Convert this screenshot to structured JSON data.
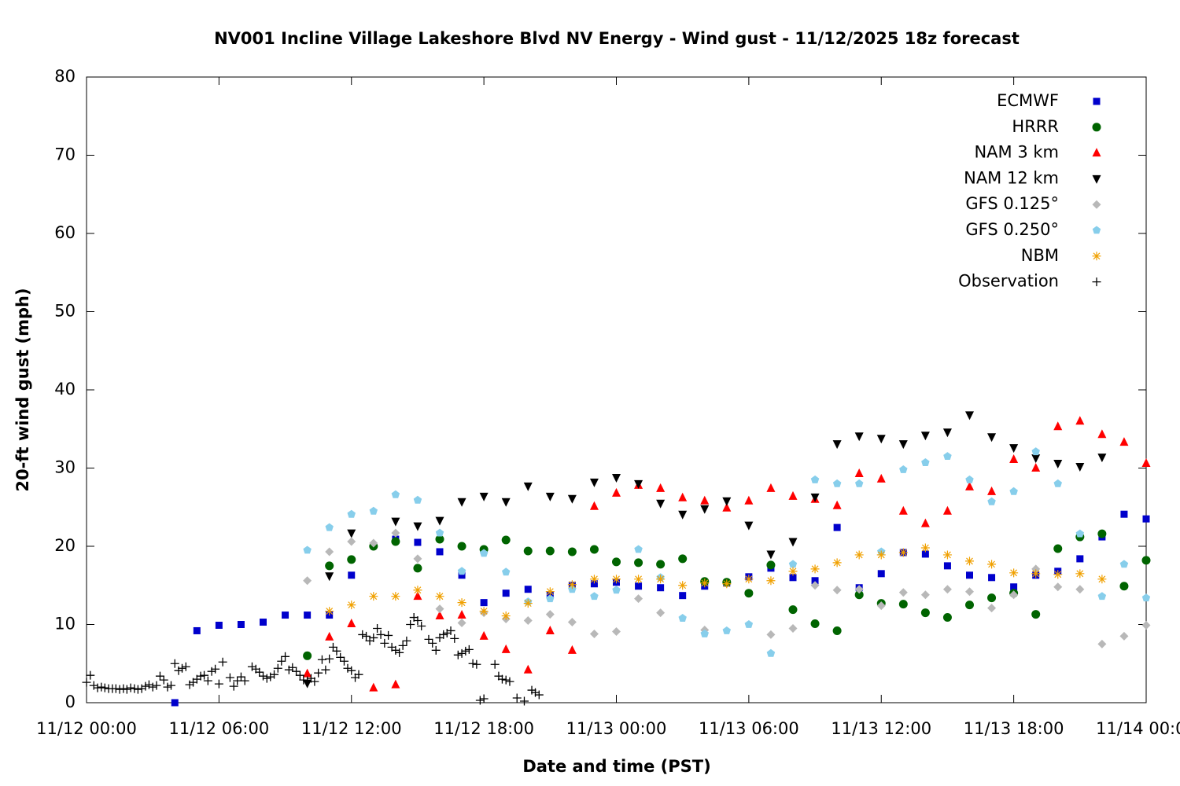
{
  "chart_data": {
    "type": "scatter",
    "title": "NV001 Incline Village Lakeshore Blvd NV Energy - Wind gust - 11/12/2025 18z forecast",
    "x_label": "Date and time (PST)",
    "y_label": "20-ft wind gust (mph)",
    "xlim": [
      0,
      48
    ],
    "ylim": [
      0,
      80
    ],
    "xticks": [
      {
        "value": 0,
        "label": "11/12 00:00"
      },
      {
        "value": 6,
        "label": "11/12 06:00"
      },
      {
        "value": 12,
        "label": "11/12 12:00"
      },
      {
        "value": 18,
        "label": "11/12 18:00"
      },
      {
        "value": 24,
        "label": "11/13 00:00"
      },
      {
        "value": 30,
        "label": "11/13 06:00"
      },
      {
        "value": 36,
        "label": "11/13 12:00"
      },
      {
        "value": 42,
        "label": "11/13 18:00"
      },
      {
        "value": 48,
        "label": "11/14 00:00"
      }
    ],
    "yticks": [
      0,
      10,
      20,
      30,
      40,
      50,
      60,
      70,
      80
    ],
    "grid": false,
    "legend": "top-right",
    "x": [
      0,
      1,
      2,
      3,
      4,
      5,
      6,
      7,
      8,
      9,
      10,
      11,
      12,
      13,
      14,
      15,
      16,
      17,
      18,
      19,
      20,
      21,
      22,
      23,
      24,
      25,
      26,
      27,
      28,
      29,
      30,
      31,
      32,
      33,
      34,
      35,
      36,
      37,
      38,
      39,
      40,
      41,
      42,
      43,
      44,
      45,
      46,
      47,
      48
    ],
    "series": [
      {
        "name": "ECMWF",
        "color": "#0000cc",
        "marker": "square",
        "values": [
          null,
          null,
          null,
          null,
          0,
          9.2,
          9.9,
          10.0,
          10.3,
          11.2,
          11.2,
          11.2,
          16.3,
          null,
          20.9,
          20.5,
          19.3,
          16.3,
          12.8,
          14.0,
          14.5,
          13.8,
          15.0,
          15.2,
          15.4,
          14.9,
          14.7,
          13.7,
          14.9,
          15.3,
          16.1,
          17.2,
          16.0,
          15.6,
          22.4,
          14.7,
          16.5,
          19.2,
          19.0,
          17.5,
          16.3,
          16.0,
          14.8,
          16.3,
          16.8,
          18.4,
          21.2,
          24.1,
          23.5
        ]
      },
      {
        "name": "HRRR",
        "color": "#006400",
        "marker": "circle",
        "values": [
          null,
          null,
          null,
          null,
          null,
          null,
          null,
          null,
          null,
          null,
          6.0,
          17.5,
          18.3,
          20.0,
          20.6,
          17.2,
          20.9,
          20.0,
          19.6,
          20.8,
          19.4,
          19.4,
          19.3,
          19.6,
          18.0,
          17.9,
          17.7,
          18.4,
          15.5,
          15.4,
          14.0,
          17.6,
          11.9,
          10.1,
          9.2,
          13.8,
          12.7,
          12.6,
          11.5,
          10.9,
          12.5,
          13.4,
          14.0,
          11.3,
          19.7,
          21.2,
          21.6,
          14.9,
          18.2
        ]
      },
      {
        "name": "NAM 3 km",
        "color": "#ff0000",
        "marker": "triangle-up",
        "values": [
          null,
          null,
          null,
          null,
          null,
          null,
          null,
          null,
          null,
          null,
          3.7,
          8.4,
          10.1,
          1.9,
          2.3,
          13.6,
          11.1,
          11.2,
          8.5,
          6.8,
          4.2,
          9.2,
          6.7,
          25.1,
          26.8,
          27.8,
          27.4,
          26.2,
          25.8,
          24.9,
          25.8,
          27.4,
          26.4,
          26.0,
          25.2,
          29.3,
          28.6,
          24.5,
          22.9,
          24.5,
          27.6,
          27.0,
          31.1,
          30.0,
          35.3,
          36.0,
          34.3,
          33.3,
          30.6
        ]
      },
      {
        "name": "NAM 12 km",
        "color": "#000000",
        "marker": "triangle-down",
        "values": [
          null,
          null,
          null,
          null,
          null,
          null,
          null,
          null,
          null,
          null,
          2.5,
          16.2,
          21.7,
          null,
          23.2,
          22.6,
          23.3,
          25.7,
          26.4,
          25.7,
          27.7,
          26.4,
          26.1,
          28.2,
          28.8,
          28.0,
          25.5,
          24.1,
          24.8,
          25.8,
          22.7,
          19.0,
          20.6,
          26.3,
          33.1,
          34.1,
          33.8,
          33.1,
          34.2,
          34.6,
          36.8,
          34.0,
          32.6,
          31.3,
          30.6,
          30.2,
          31.4,
          null,
          null
        ]
      },
      {
        "name": "GFS 0.125°",
        "color": "#b8b8b8",
        "marker": "diamond",
        "values": [
          null,
          null,
          null,
          null,
          null,
          null,
          null,
          null,
          null,
          null,
          15.6,
          19.3,
          20.6,
          20.4,
          21.7,
          18.4,
          12.0,
          10.2,
          11.5,
          10.7,
          10.5,
          11.3,
          10.3,
          8.8,
          9.1,
          13.3,
          11.5,
          null,
          9.3,
          null,
          null,
          8.7,
          9.5,
          15.0,
          14.4,
          14.5,
          12.4,
          14.1,
          13.8,
          14.5,
          14.2,
          12.1,
          13.8,
          17.1,
          14.8,
          14.5,
          7.5,
          8.5,
          9.9
        ]
      },
      {
        "name": "GFS 0.250°",
        "color": "#87ceeb",
        "marker": "pentagon",
        "values": [
          null,
          null,
          null,
          null,
          null,
          null,
          null,
          null,
          null,
          null,
          19.5,
          22.4,
          24.1,
          24.5,
          26.6,
          25.9,
          21.7,
          16.8,
          19.1,
          16.7,
          12.9,
          13.3,
          14.5,
          13.6,
          14.4,
          19.6,
          16.0,
          10.8,
          8.8,
          9.2,
          10.0,
          6.3,
          17.7,
          28.5,
          28.0,
          28.0,
          19.3,
          29.8,
          30.7,
          31.5,
          28.5,
          25.7,
          27.0,
          32.1,
          28.0,
          21.6,
          13.6,
          17.7,
          13.4
        ]
      },
      {
        "name": "NBM",
        "color": "#f0a000",
        "marker": "asterisk",
        "values": [
          null,
          null,
          null,
          null,
          null,
          null,
          null,
          null,
          null,
          null,
          null,
          11.7,
          12.5,
          13.6,
          13.6,
          14.4,
          13.6,
          12.8,
          11.7,
          11.1,
          12.7,
          14.2,
          15.1,
          15.8,
          15.8,
          15.8,
          15.8,
          15.0,
          15.3,
          15.2,
          15.8,
          15.6,
          16.8,
          17.1,
          17.9,
          18.9,
          18.9,
          19.2,
          19.8,
          18.9,
          18.1,
          17.7,
          16.6,
          16.5,
          16.4,
          16.5,
          15.8,
          null,
          null
        ]
      },
      {
        "name": "Observation",
        "color": "#000000",
        "marker": "plus",
        "x": [
          0,
          0.17,
          0.33,
          0.5,
          0.67,
          0.83,
          1,
          1.17,
          1.33,
          1.5,
          1.67,
          1.83,
          2,
          2.17,
          2.33,
          2.5,
          2.67,
          2.83,
          3,
          3.17,
          3.33,
          3.5,
          3.67,
          3.83,
          4,
          4.17,
          4.33,
          4.5,
          4.67,
          4.83,
          5,
          5.17,
          5.33,
          5.5,
          5.67,
          5.83,
          6,
          6.17,
          6.5,
          6.67,
          6.83,
          7,
          7.17,
          7.5,
          7.67,
          7.83,
          8,
          8.17,
          8.33,
          8.5,
          8.67,
          8.83,
          9,
          9.17,
          9.33,
          9.5,
          9.67,
          9.83,
          10,
          10.17,
          10.33,
          10.5,
          10.67,
          10.83,
          11,
          11.17,
          11.33,
          11.5,
          11.67,
          11.83,
          12,
          12.17,
          12.33,
          12.5,
          12.67,
          12.83,
          13,
          13.17,
          13.33,
          13.5,
          13.67,
          13.83,
          14,
          14.17,
          14.33,
          14.5,
          14.67,
          14.83,
          15,
          15.17,
          15.5,
          15.67,
          15.83,
          16,
          16.17,
          16.33,
          16.5,
          16.67,
          16.83,
          17,
          17.17,
          17.33,
          17.5,
          17.67,
          17.83,
          18,
          18.5,
          18.67,
          18.83,
          19,
          19.17,
          19.5,
          19.83,
          20.17,
          20.33,
          20.5
        ],
        "values": [
          2.6,
          3.5,
          2.2,
          1.9,
          2.0,
          1.9,
          1.8,
          1.8,
          1.8,
          1.7,
          1.8,
          1.7,
          1.9,
          1.8,
          1.7,
          1.8,
          2.1,
          2.3,
          2.0,
          2.2,
          3.4,
          2.9,
          2.0,
          2.2,
          5.0,
          4.1,
          4.4,
          4.6,
          2.3,
          2.6,
          3.0,
          3.4,
          3.5,
          2.8,
          4.0,
          4.3,
          2.4,
          5.2,
          3.2,
          2.1,
          2.8,
          3.3,
          2.8,
          4.6,
          4.3,
          3.9,
          3.4,
          3.1,
          3.3,
          3.6,
          4.4,
          5.3,
          5.9,
          4.2,
          4.5,
          4.0,
          3.5,
          2.9,
          2.8,
          3.1,
          2.7,
          3.8,
          5.5,
          4.2,
          5.6,
          7.1,
          6.6,
          5.8,
          5.3,
          4.4,
          4.1,
          3.2,
          3.6,
          8.7,
          8.5,
          7.9,
          8.3,
          9.5,
          8.7,
          7.6,
          8.6,
          7.1,
          6.7,
          6.4,
          7.3,
          7.9,
          10.0,
          10.9,
          10.5,
          9.8,
          8.1,
          7.6,
          6.7,
          8.3,
          8.7,
          8.9,
          9.2,
          8.2,
          6.1,
          6.3,
          6.6,
          6.8,
          5.0,
          4.9,
          0.3,
          0.5,
          4.9,
          3.4,
          3.0,
          2.9,
          2.7,
          0.6,
          0.2,
          1.6,
          1.3,
          1.0
        ]
      }
    ]
  }
}
